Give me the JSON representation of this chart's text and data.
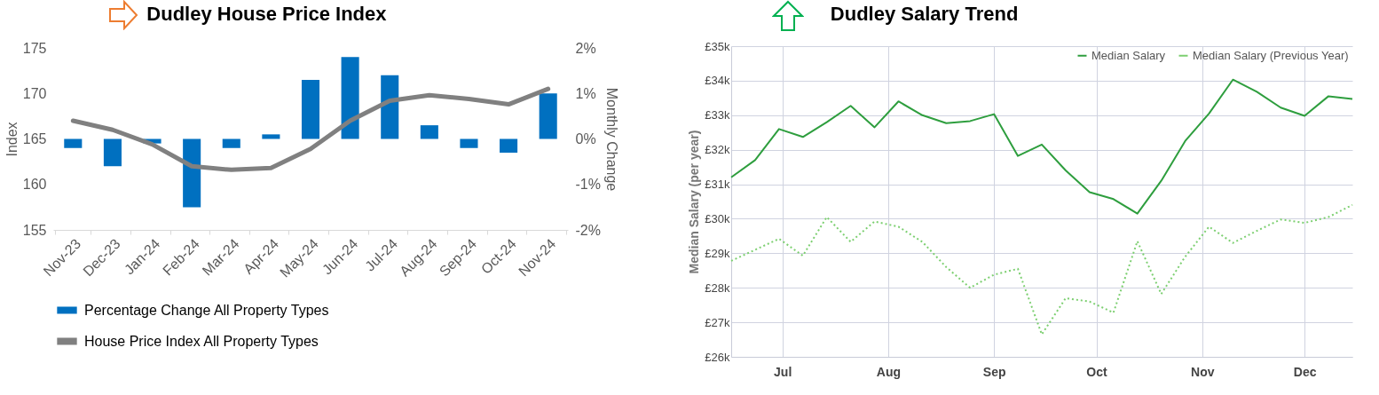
{
  "chart_data": [
    {
      "type": "bar",
      "title": "Dudley House Price Index",
      "ylabel": "Index",
      "y2label": "Monthly Change",
      "categories": [
        "Nov-23",
        "Dec-23",
        "Jan-24",
        "Feb-24",
        "Mar-24",
        "Apr-24",
        "May-24",
        "Jun-24",
        "Jul-24",
        "Aug-24",
        "Sep-24",
        "Oct-24",
        "Nov-24"
      ],
      "series": [
        {
          "name": "Percentage Change All Property Types",
          "type": "bar",
          "axis": "y2",
          "color": "#0070c0",
          "values": [
            -0.2,
            -0.6,
            -0.1,
            -1.5,
            -0.2,
            0.1,
            1.3,
            1.8,
            1.4,
            0.3,
            -0.2,
            -0.3,
            1.0
          ]
        },
        {
          "name": "House Price Index All Property Types",
          "type": "line",
          "color": "#808080",
          "values": [
            167.0,
            166.0,
            164.4,
            162.0,
            161.6,
            161.8,
            163.9,
            167.0,
            169.2,
            169.8,
            169.4,
            168.8,
            170.5
          ]
        }
      ],
      "ylim": [
        155,
        175
      ],
      "yticks": [
        155,
        160,
        165,
        170,
        175
      ],
      "y2lim": [
        -2,
        2
      ],
      "y2ticks": [
        {
          "value": -2,
          "label": "-2%"
        },
        {
          "value": -1,
          "label": "-1%"
        },
        {
          "value": 0,
          "label": "0%"
        },
        {
          "value": 1,
          "label": "1%"
        },
        {
          "value": 2,
          "label": "2%"
        }
      ],
      "legend": "bottom",
      "grid": false
    },
    {
      "type": "line",
      "title": "Dudley Salary Trend",
      "ylabel": "Median Salary (per year)",
      "x": [
        "--06-16",
        "--06-23",
        "--06-30",
        "--07-07",
        "--07-14",
        "--07-21",
        "--07-28",
        "--08-04",
        "--08-11",
        "--08-18",
        "--08-25",
        "--09-01",
        "--09-08",
        "--09-15",
        "--09-22",
        "--09-29",
        "--10-06",
        "--10-13",
        "--10-20",
        "--10-27",
        "--11-03",
        "--11-10",
        "--11-17",
        "--11-24",
        "--12-01",
        "--12-08",
        "--12-15"
      ],
      "series": [
        {
          "name": "Median Salary",
          "color": "#2e9e3e",
          "line_style": "solid",
          "values": [
            31.2,
            31.7,
            32.6,
            32.37,
            32.8,
            33.27,
            32.65,
            33.4,
            33.0,
            32.77,
            32.83,
            33.03,
            31.82,
            32.15,
            31.4,
            30.77,
            30.57,
            30.15,
            31.1,
            32.25,
            33.05,
            34.03,
            33.68,
            33.22,
            32.98,
            33.55,
            33.47
          ]
        },
        {
          "name": "Median Salary (Previous Year)",
          "color": "#7ccf70",
          "line_style": "dotted",
          "values": [
            28.78,
            29.1,
            29.42,
            28.93,
            30.05,
            29.33,
            29.92,
            29.77,
            29.33,
            28.6,
            28.0,
            28.38,
            28.55,
            26.65,
            27.7,
            27.6,
            27.28,
            29.35,
            27.82,
            28.9,
            29.77,
            29.3,
            29.65,
            29.98,
            29.88,
            30.05,
            30.4
          ]
        }
      ],
      "xlim": [
        "--06-16",
        "--12-15"
      ],
      "xticks": [
        {
          "value": "--07-01",
          "label": "Jul"
        },
        {
          "value": "--08-01",
          "label": "Aug"
        },
        {
          "value": "--09-01",
          "label": "Sep"
        },
        {
          "value": "--10-01",
          "label": "Oct"
        },
        {
          "value": "--11-01",
          "label": "Nov"
        },
        {
          "value": "--12-01",
          "label": "Dec"
        }
      ],
      "ylim": [
        26,
        35
      ],
      "yticks": [
        {
          "value": 26,
          "label": "£26k"
        },
        {
          "value": 27,
          "label": "£27k"
        },
        {
          "value": 28,
          "label": "£28k"
        },
        {
          "value": 29,
          "label": "£29k"
        },
        {
          "value": 30,
          "label": "£30k"
        },
        {
          "value": 31,
          "label": "£31k"
        },
        {
          "value": 32,
          "label": "£32k"
        },
        {
          "value": 33,
          "label": "£33k"
        },
        {
          "value": 34,
          "label": "£34k"
        },
        {
          "value": 35,
          "label": "£35k"
        }
      ],
      "legend": "top right",
      "grid": true,
      "marker": "none"
    }
  ]
}
